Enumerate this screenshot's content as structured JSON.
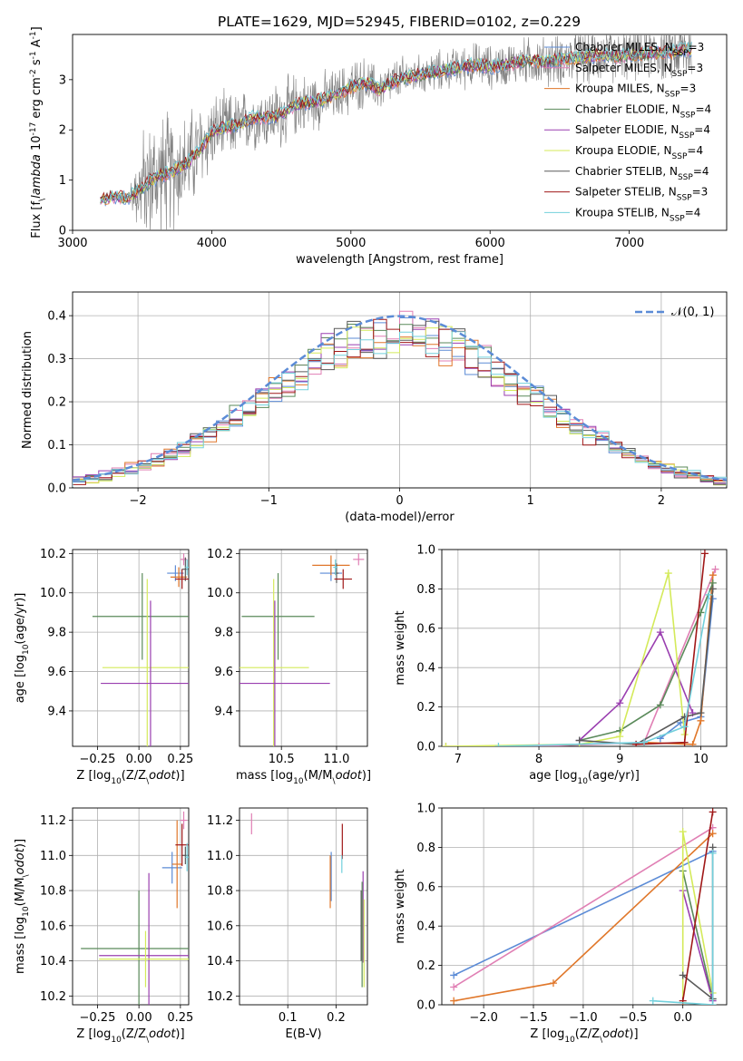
{
  "figure": {
    "title": "PLATE=1629, MJD=52945, FIBERID=0102, z=0.229"
  },
  "colors": {
    "Chabrier MILES": "#5b8bd6",
    "Salpeter MILES": "#e07fb4",
    "Kroupa MILES": "#e0772a",
    "Chabrier ELODIE": "#5a8a5a",
    "Salpeter ELODIE": "#9a3fb0",
    "Kroupa ELODIE": "#d4ea5a",
    "Chabrier STELIB": "#5a5a5a",
    "Salpeter STELIB": "#a01818",
    "Kroupa STELIB": "#72d0dc",
    "data": "#808080",
    "normal": "#5b8bd6"
  },
  "chart_data": [
    {
      "id": "spectrum",
      "type": "line",
      "xlabel": "wavelength [Angstrom, rest frame]",
      "ylabel": "Flux [f$_\\lambda$ 10$^{-17}$ erg cm$^{-2}$ s$^{-1}$ A$^{-1}$]",
      "xlim": [
        3000,
        7700
      ],
      "ylim": [
        0,
        3.9
      ],
      "xticks": [
        3000,
        4000,
        5000,
        6000,
        7000
      ],
      "yticks": [
        0,
        1,
        2,
        3
      ],
      "grid": false,
      "legend_position": "upper right",
      "legend": [
        {
          "label": "Chabrier MILES, N$_{SSP}$=3",
          "text": "Chabrier MILES, N",
          "nssp": "=3",
          "model": "Chabrier MILES"
        },
        {
          "label": "Salpeter MILES, N$_{SSP}$=3",
          "text": "Salpeter MILES, N",
          "nssp": "=3",
          "model": "Salpeter MILES"
        },
        {
          "label": "Kroupa MILES, N$_{SSP}$=3",
          "text": "Kroupa MILES, N",
          "nssp": "=3",
          "model": "Kroupa MILES"
        },
        {
          "label": "Chabrier ELODIE, N$_{SSP}$=4",
          "text": "Chabrier ELODIE, N",
          "nssp": "=4",
          "model": "Chabrier ELODIE"
        },
        {
          "label": "Salpeter ELODIE, N$_{SSP}$=4",
          "text": "Salpeter ELODIE, N",
          "nssp": "=4",
          "model": "Salpeter ELODIE"
        },
        {
          "label": "Kroupa ELODIE, N$_{SSP}$=4",
          "text": "Kroupa ELODIE, N",
          "nssp": "=4",
          "model": "Kroupa ELODIE"
        },
        {
          "label": "Chabrier STELIB, N$_{SSP}$=4",
          "text": "Chabrier STELIB, N",
          "nssp": "=4",
          "model": "Chabrier STELIB"
        },
        {
          "label": "Salpeter STELIB, N$_{SSP}$=3",
          "text": "Salpeter STELIB, N",
          "nssp": "=3",
          "model": "Salpeter STELIB"
        },
        {
          "label": "Kroupa STELIB, N$_{SSP}$=4",
          "text": "Kroupa STELIB, N",
          "nssp": "=4",
          "model": "Kroupa STELIB"
        }
      ],
      "data_envelope": {
        "wavelength": [
          3200,
          3300,
          3400,
          3500,
          3600,
          3700,
          3800,
          3900,
          4000,
          4100,
          4200,
          4300,
          4400,
          4500,
          4600,
          4700,
          4800,
          4900,
          5000,
          5100,
          5200,
          5300,
          5400,
          5500,
          5600,
          5700,
          5800,
          5900,
          6000,
          6100,
          6200,
          6300,
          6400,
          6500,
          6600,
          6700,
          6800,
          6900,
          7000,
          7100,
          7200,
          7300,
          7400
        ],
        "flux": [
          0.62,
          0.68,
          0.66,
          0.85,
          1.05,
          1.15,
          1.3,
          1.55,
          1.95,
          2.05,
          2.1,
          2.25,
          2.25,
          2.3,
          2.5,
          2.55,
          2.6,
          2.7,
          2.85,
          2.95,
          2.8,
          2.95,
          3.05,
          3.1,
          3.15,
          3.2,
          3.25,
          3.3,
          3.25,
          3.3,
          3.35,
          3.38,
          3.35,
          3.4,
          3.42,
          3.45,
          3.5,
          3.45,
          3.5,
          3.5,
          3.55,
          3.55,
          3.6
        ],
        "noise": [
          0.05,
          0.06,
          0.06,
          0.9,
          1.0,
          1.0,
          0.8,
          0.8,
          0.6,
          0.55,
          0.5,
          0.5,
          0.5,
          0.55,
          0.5,
          0.45,
          0.45,
          0.4,
          0.45,
          0.4,
          0.35,
          0.35,
          0.35,
          0.3,
          0.35,
          0.3,
          0.35,
          0.35,
          0.35,
          0.35,
          0.35,
          0.4,
          0.4,
          0.4,
          0.45,
          0.45,
          0.45,
          0.4,
          0.4,
          0.4,
          0.45,
          0.5,
          0.55
        ]
      }
    },
    {
      "id": "residuals",
      "type": "line",
      "xlabel": "(data-model)/error",
      "ylabel": "Normed distribution",
      "xlim": [
        -2.5,
        2.5
      ],
      "ylim": [
        0,
        0.455
      ],
      "xticks": [
        -2,
        -1,
        0,
        1,
        2
      ],
      "yticks": [
        0.0,
        0.1,
        0.2,
        0.3,
        0.4
      ],
      "grid": true,
      "legend_position": "upper right",
      "legend": [
        {
          "label": "$\\mathcal{N}(0,1)$",
          "text": "𝒩(0, 1)"
        }
      ],
      "hist_bin_width": 0.1
    },
    {
      "id": "age_vs_Z",
      "type": "scatter",
      "xlabel": "Z [log$_{10}$(Z/Z$_\\odot$)]",
      "ylabel": "age  [log$_{10}$(age/yr)]",
      "xlim": [
        -0.4,
        0.3
      ],
      "ylim": [
        9.22,
        10.22
      ],
      "xticks": [
        -0.25,
        0.0,
        0.25
      ],
      "yticks": [
        9.4,
        9.6,
        9.8,
        10.0,
        10.2
      ],
      "grid": true,
      "points": [
        {
          "model": "Chabrier ELODIE",
          "x": 0.02,
          "xerr": 0.3,
          "y": 9.88,
          "yerr": 0.22
        },
        {
          "model": "Kroupa ELODIE",
          "x": 0.05,
          "xerr": 0.27,
          "y": 9.62,
          "yerr": 0.45
        },
        {
          "model": "Salpeter ELODIE",
          "x": 0.07,
          "xerr": 0.3,
          "y": 9.54,
          "yerr": 0.42
        },
        {
          "model": "Chabrier MILES",
          "x": 0.22,
          "xerr": 0.05,
          "y": 10.1,
          "yerr": 0.04
        },
        {
          "model": "Kroupa MILES",
          "x": 0.24,
          "xerr": 0.05,
          "y": 10.08,
          "yerr": 0.05
        },
        {
          "model": "Salpeter MILES",
          "x": 0.27,
          "xerr": 0.02,
          "y": 10.17,
          "yerr": 0.03
        },
        {
          "model": "Chabrier STELIB",
          "x": 0.28,
          "xerr": 0.02,
          "y": 10.12,
          "yerr": 0.06
        },
        {
          "model": "Salpeter STELIB",
          "x": 0.26,
          "xerr": 0.04,
          "y": 10.07,
          "yerr": 0.05
        },
        {
          "model": "Kroupa STELIB",
          "x": 0.29,
          "xerr": 0.01,
          "y": 10.13,
          "yerr": 0.04
        }
      ]
    },
    {
      "id": "age_vs_mass",
      "type": "scatter",
      "xlabel": "mass [log$_{10}$(M/M$_\\odot$)]",
      "ylabel": "",
      "xlim": [
        10.12,
        11.28
      ],
      "ylim": [
        9.22,
        10.22
      ],
      "xticks": [
        10.5,
        11.0
      ],
      "yticks": [
        9.4,
        9.6,
        9.8,
        10.0,
        10.2
      ],
      "grid": true,
      "points": [
        {
          "model": "Chabrier ELODIE",
          "x": 10.47,
          "xerr": 0.33,
          "y": 9.88,
          "yerr": 0.22
        },
        {
          "model": "Kroupa ELODIE",
          "x": 10.43,
          "xerr": 0.32,
          "y": 9.62,
          "yerr": 0.45
        },
        {
          "model": "Salpeter ELODIE",
          "x": 10.44,
          "xerr": 0.5,
          "y": 9.54,
          "yerr": 0.42
        },
        {
          "model": "Chabrier MILES",
          "x": 10.95,
          "xerr": 0.1,
          "y": 10.1,
          "yerr": 0.04
        },
        {
          "model": "Kroupa MILES",
          "x": 10.95,
          "xerr": 0.17,
          "y": 10.14,
          "yerr": 0.05
        },
        {
          "model": "Salpeter MILES",
          "x": 11.2,
          "xerr": 0.05,
          "y": 10.17,
          "yerr": 0.03
        },
        {
          "model": "Chabrier STELIB",
          "x": 11.0,
          "xerr": 0.02,
          "y": 10.1,
          "yerr": 0.05
        },
        {
          "model": "Salpeter STELIB",
          "x": 11.06,
          "xerr": 0.08,
          "y": 10.07,
          "yerr": 0.05
        },
        {
          "model": "Kroupa STELIB",
          "x": 10.99,
          "xerr": 0.02,
          "y": 10.13,
          "yerr": 0.04
        }
      ]
    },
    {
      "id": "mass_weight_vs_age",
      "type": "line",
      "xlabel": "age  [log$_{10}$(age/yr)]",
      "ylabel": "mass weight",
      "xlim": [
        6.8,
        10.32
      ],
      "ylim": [
        0,
        1.0
      ],
      "xticks": [
        7,
        8,
        9,
        10
      ],
      "yticks": [
        0.0,
        0.2,
        0.4,
        0.6,
        0.8,
        1.0
      ],
      "grid": true,
      "series": [
        {
          "model": "Chabrier MILES",
          "x": [
            9.5,
            9.75,
            10.0,
            10.15
          ],
          "y": [
            0.04,
            0.12,
            0.15,
            0.75
          ]
        },
        {
          "model": "Salpeter MILES",
          "x": [
            6.85,
            8.0,
            9.3,
            10.18
          ],
          "y": [
            0.0,
            0.0,
            0.02,
            0.9
          ]
        },
        {
          "model": "Kroupa MILES",
          "x": [
            9.3,
            9.9,
            10.0,
            10.15
          ],
          "y": [
            0.02,
            0.01,
            0.13,
            0.87
          ]
        },
        {
          "model": "Chabrier ELODIE",
          "x": [
            8.5,
            9.0,
            9.5,
            10.0,
            10.15
          ],
          "y": [
            0.03,
            0.08,
            0.21,
            0.68,
            0.83
          ]
        },
        {
          "model": "Salpeter ELODIE",
          "x": [
            8.5,
            9.0,
            9.5,
            9.9
          ],
          "y": [
            0.03,
            0.22,
            0.58,
            0.17
          ]
        },
        {
          "model": "Kroupa ELODIE",
          "x": [
            6.85,
            8.5,
            9.0,
            9.6,
            9.8
          ],
          "y": [
            0.0,
            0.01,
            0.05,
            0.88,
            0.06
          ]
        },
        {
          "model": "Chabrier STELIB",
          "x": [
            8.5,
            9.2,
            9.8,
            10.0,
            10.15
          ],
          "y": [
            0.03,
            0.01,
            0.15,
            0.17,
            0.8
          ]
        },
        {
          "model": "Salpeter STELIB",
          "x": [
            9.2,
            9.8,
            10.05
          ],
          "y": [
            0.01,
            0.02,
            0.98
          ]
        },
        {
          "model": "Kroupa STELIB",
          "x": [
            7.5,
            9.3,
            9.8,
            10.1
          ],
          "y": [
            0.0,
            0.02,
            0.1,
            0.77
          ]
        }
      ]
    },
    {
      "id": "mass_vs_Z",
      "type": "scatter",
      "xlabel": "Z [log$_{10}$(Z/Z$_\\odot$)]",
      "ylabel": "mass [log$_{10}$(M/M$_\\odot$)]",
      "xlim": [
        -0.4,
        0.3
      ],
      "ylim": [
        10.15,
        11.27
      ],
      "xticks": [
        -0.25,
        0.0,
        0.25
      ],
      "yticks": [
        10.2,
        10.4,
        10.6,
        10.8,
        11.0,
        11.2
      ],
      "grid": true,
      "points": [
        {
          "model": "Chabrier ELODIE",
          "x": 0.0,
          "xerr": 0.35,
          "y": 10.47,
          "yerr": 0.33
        },
        {
          "model": "Salpeter ELODIE",
          "x": 0.06,
          "xerr": 0.3,
          "y": 10.43,
          "yerr": 0.47
        },
        {
          "model": "Kroupa ELODIE",
          "x": 0.04,
          "xerr": 0.28,
          "y": 10.41,
          "yerr": 0.16
        },
        {
          "model": "Chabrier MILES",
          "x": 0.2,
          "xerr": 0.06,
          "y": 10.93,
          "yerr": 0.09
        },
        {
          "model": "Kroupa MILES",
          "x": 0.23,
          "xerr": 0.03,
          "y": 10.95,
          "yerr": 0.25
        },
        {
          "model": "Salpeter MILES",
          "x": 0.27,
          "xerr": 0.02,
          "y": 11.2,
          "yerr": 0.05
        },
        {
          "model": "Chabrier STELIB",
          "x": 0.28,
          "xerr": 0.02,
          "y": 11.0,
          "yerr": 0.05
        },
        {
          "model": "Salpeter STELIB",
          "x": 0.26,
          "xerr": 0.04,
          "y": 11.06,
          "yerr": 0.12
        },
        {
          "model": "Kroupa STELIB",
          "x": 0.29,
          "xerr": 0.01,
          "y": 10.99,
          "yerr": 0.08
        }
      ]
    },
    {
      "id": "mass_vs_EBV",
      "type": "scatter",
      "xlabel": "E(B-V)",
      "ylabel": "",
      "xlim": [
        0.0,
        0.265
      ],
      "ylim": [
        10.15,
        11.27
      ],
      "xticks": [
        0.1,
        0.2
      ],
      "yticks": [
        10.2,
        10.4,
        10.6,
        10.8,
        11.0,
        11.2
      ],
      "grid": true,
      "points": [
        {
          "model": "Salpeter MILES",
          "x": 0.025,
          "xerr": 0.0,
          "y": 11.18,
          "yerr": 0.06
        },
        {
          "model": "Chabrier MILES",
          "x": 0.19,
          "xerr": 0.0,
          "y": 10.88,
          "yerr": 0.14
        },
        {
          "model": "Kroupa MILES",
          "x": 0.188,
          "xerr": 0.0,
          "y": 10.85,
          "yerr": 0.15
        },
        {
          "model": "Salpeter STELIB",
          "x": 0.213,
          "xerr": 0.0,
          "y": 11.08,
          "yerr": 0.1
        },
        {
          "model": "Kroupa STELIB",
          "x": 0.212,
          "xerr": 0.0,
          "y": 10.95,
          "yerr": 0.05
        },
        {
          "model": "Chabrier STELIB",
          "x": 0.252,
          "xerr": 0.0,
          "y": 10.6,
          "yerr": 0.2
        },
        {
          "model": "Salpeter ELODIE",
          "x": 0.256,
          "xerr": 0.0,
          "y": 10.65,
          "yerr": 0.26
        },
        {
          "model": "Kroupa ELODIE",
          "x": 0.258,
          "xerr": 0.0,
          "y": 10.5,
          "yerr": 0.25
        },
        {
          "model": "Chabrier ELODIE",
          "x": 0.254,
          "xerr": 0.0,
          "y": 10.55,
          "yerr": 0.3
        }
      ]
    },
    {
      "id": "mass_weight_vs_Z",
      "type": "line",
      "xlabel": "Z [log$_{10}$(Z/Z$_\\odot$)]",
      "ylabel": "mass weight",
      "xlim": [
        -2.42,
        0.44
      ],
      "ylim": [
        0,
        1.0
      ],
      "xticks": [
        -2.0,
        -1.5,
        -1.0,
        -0.5,
        0.0
      ],
      "yticks": [
        0.0,
        0.2,
        0.4,
        0.6,
        0.8,
        1.0
      ],
      "grid": true,
      "series": [
        {
          "model": "Chabrier MILES",
          "x": [
            -2.3,
            0.3
          ],
          "y": [
            0.15,
            0.78
          ]
        },
        {
          "model": "Salpeter MILES",
          "x": [
            -2.3,
            0.3
          ],
          "y": [
            0.09,
            0.9
          ]
        },
        {
          "model": "Kroupa MILES",
          "x": [
            -2.3,
            -1.3,
            0.3
          ],
          "y": [
            0.02,
            0.11,
            0.87
          ]
        },
        {
          "model": "Chabrier ELODIE",
          "x": [
            0.0,
            0.3
          ],
          "y": [
            0.68,
            0.03
          ]
        },
        {
          "model": "Salpeter ELODIE",
          "x": [
            0.0,
            0.3
          ],
          "y": [
            0.58,
            0.02
          ]
        },
        {
          "model": "Kroupa ELODIE",
          "x": [
            0.0,
            0.0,
            0.3
          ],
          "y": [
            0.01,
            0.88,
            0.06
          ]
        },
        {
          "model": "Chabrier STELIB",
          "x": [
            0.0,
            0.3,
            0.3
          ],
          "y": [
            0.15,
            0.03,
            0.8
          ]
        },
        {
          "model": "Salpeter STELIB",
          "x": [
            0.0,
            0.3
          ],
          "y": [
            0.02,
            0.98
          ]
        },
        {
          "model": "Kroupa STELIB",
          "x": [
            -0.3,
            0.3,
            0.3
          ],
          "y": [
            0.02,
            0.0,
            0.77
          ]
        }
      ]
    }
  ]
}
